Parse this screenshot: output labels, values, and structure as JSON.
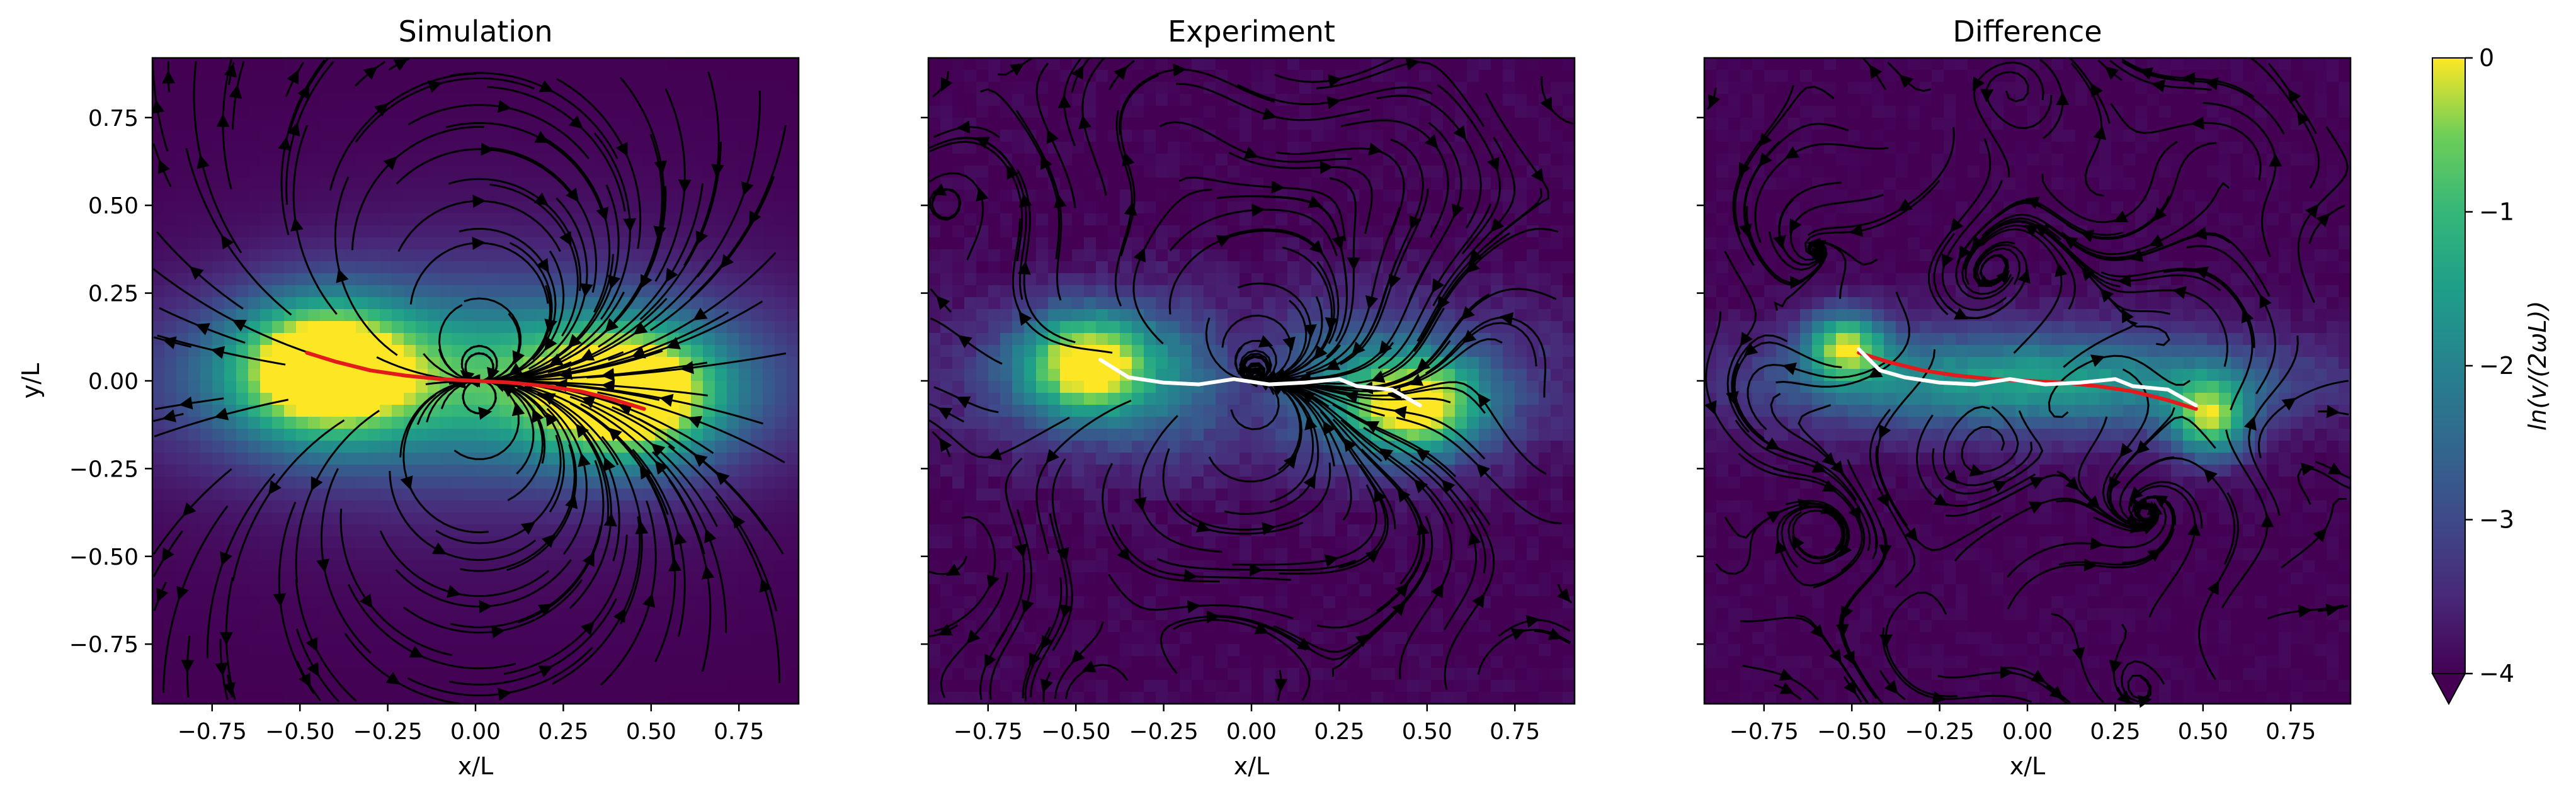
{
  "chart_data": [
    {
      "type": "heatmap",
      "title": "Simulation",
      "xlabel": "x/L",
      "ylabel": "y/L",
      "xlim": [
        -0.92,
        0.92
      ],
      "ylim": [
        -0.92,
        0.92
      ],
      "xticks": [
        "−0.75",
        "−0.50",
        "−0.25",
        "0.00",
        "0.25",
        "0.50",
        "0.75"
      ],
      "yticks": [
        "0.75",
        "0.50",
        "0.25",
        "0.00",
        "−0.25",
        "−0.50",
        "−0.75"
      ],
      "streamlines": true,
      "field": "dipole",
      "centerline": {
        "color": "#e41a1c",
        "x": [
          -0.48,
          -0.4,
          -0.3,
          -0.2,
          -0.1,
          0.0,
          0.1,
          0.2,
          0.3,
          0.4,
          0.48
        ],
        "y": [
          0.08,
          0.055,
          0.03,
          0.015,
          0.005,
          0.0,
          -0.005,
          -0.015,
          -0.03,
          -0.055,
          -0.08
        ]
      }
    },
    {
      "type": "heatmap",
      "title": "Experiment",
      "xlabel": "x/L",
      "ylabel": "",
      "xlim": [
        -0.92,
        0.92
      ],
      "ylim": [
        -0.92,
        0.92
      ],
      "xticks": [
        "−0.75",
        "−0.50",
        "−0.25",
        "0.00",
        "0.25",
        "0.50",
        "0.75"
      ],
      "streamlines": true,
      "field": "dipole-noisy",
      "centerline": {
        "color": "#ffffff",
        "x": [
          -0.43,
          -0.35,
          -0.25,
          -0.15,
          -0.05,
          0.05,
          0.15,
          0.25,
          0.3,
          0.4,
          0.48
        ],
        "y": [
          0.06,
          0.01,
          -0.005,
          -0.01,
          0.005,
          -0.01,
          -0.005,
          0.005,
          -0.015,
          -0.025,
          -0.07
        ]
      }
    },
    {
      "type": "heatmap",
      "title": "Difference",
      "xlabel": "x/L",
      "ylabel": "",
      "xlim": [
        -0.92,
        0.92
      ],
      "ylim": [
        -0.92,
        0.92
      ],
      "xticks": [
        "−0.75",
        "−0.50",
        "−0.25",
        "0.00",
        "0.25",
        "0.50",
        "0.75"
      ],
      "streamlines": true,
      "field": "difference",
      "centerline": {
        "color": "#e41a1c",
        "x": [
          -0.48,
          -0.4,
          -0.3,
          -0.2,
          -0.1,
          0.0,
          0.1,
          0.2,
          0.3,
          0.4,
          0.48
        ],
        "y": [
          0.08,
          0.055,
          0.03,
          0.015,
          0.005,
          0.0,
          -0.005,
          -0.015,
          -0.03,
          -0.055,
          -0.08
        ]
      },
      "overlay": {
        "color": "#ffffff",
        "x": [
          -0.48,
          -0.42,
          -0.35,
          -0.25,
          -0.15,
          -0.05,
          0.05,
          0.15,
          0.25,
          0.3,
          0.4,
          0.48
        ],
        "y": [
          0.09,
          0.03,
          0.01,
          -0.005,
          -0.01,
          0.005,
          -0.01,
          -0.005,
          0.005,
          -0.015,
          -0.025,
          -0.07
        ]
      }
    }
  ],
  "colorbar": {
    "label": "ln(v/(2ωL))",
    "range": [
      -4,
      0
    ],
    "ticks": [
      "0",
      "−1",
      "−2",
      "−3",
      "−4"
    ],
    "colormap": "viridis",
    "extend": "min"
  }
}
